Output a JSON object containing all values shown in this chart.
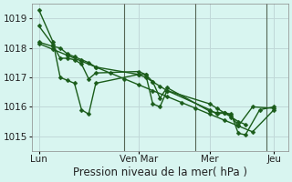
{
  "background_color": "#d8f5f0",
  "grid_color": "#c0d8d8",
  "line_color": "#1a5c1a",
  "marker": "D",
  "markersize": 2.5,
  "linewidth": 1.0,
  "xlabel": "Pression niveau de la mer( hPa )",
  "xlabel_fontsize": 8.5,
  "tick_fontsize": 7.5,
  "ylim": [
    1014.5,
    1019.5
  ],
  "yticks": [
    1015,
    1016,
    1017,
    1018,
    1019
  ],
  "xticklabels": [
    "Lun",
    "Ven Mar",
    "Mer",
    "Jeu"
  ],
  "xtick_positions": [
    0,
    14,
    24,
    33
  ],
  "series": [
    {
      "x": [
        0,
        2,
        3,
        4,
        5,
        6,
        7,
        8,
        14,
        15,
        16,
        17,
        18,
        24,
        25,
        26,
        27,
        28,
        29,
        31,
        33
      ],
      "y": [
        1019.3,
        1018.2,
        1017.0,
        1016.9,
        1016.8,
        1015.9,
        1015.75,
        1016.8,
        1017.1,
        1017.1,
        1016.1,
        1016.0,
        1016.55,
        1015.9,
        1015.75,
        1015.8,
        1015.75,
        1015.1,
        1015.05,
        1015.9,
        1016.0
      ]
    },
    {
      "x": [
        0,
        2,
        3,
        4,
        5,
        6,
        7,
        8,
        14,
        15,
        16,
        17,
        18,
        24,
        25,
        26,
        27,
        28,
        30,
        33
      ],
      "y": [
        1018.75,
        1018.1,
        1017.65,
        1017.65,
        1017.6,
        1017.45,
        1016.95,
        1017.15,
        1017.2,
        1017.1,
        1016.85,
        1016.3,
        1016.65,
        1015.85,
        1015.8,
        1015.8,
        1015.7,
        1015.35,
        1016.0,
        1015.95
      ]
    },
    {
      "x": [
        0,
        2,
        3,
        4,
        5,
        6,
        7,
        8,
        14,
        15,
        16,
        17,
        18,
        24,
        25,
        26,
        27,
        28,
        29
      ],
      "y": [
        1018.2,
        1018.05,
        1018.0,
        1017.8,
        1017.7,
        1017.6,
        1017.5,
        1017.35,
        1017.1,
        1017.0,
        1016.85,
        1016.7,
        1016.55,
        1016.1,
        1015.95,
        1015.8,
        1015.65,
        1015.5,
        1015.4
      ]
    },
    {
      "x": [
        0,
        2,
        4,
        6,
        8,
        10,
        12,
        14,
        16,
        18,
        20,
        22,
        24,
        26,
        28,
        30,
        33
      ],
      "y": [
        1018.15,
        1017.95,
        1017.75,
        1017.55,
        1017.35,
        1017.15,
        1016.95,
        1016.75,
        1016.55,
        1016.35,
        1016.15,
        1015.95,
        1015.75,
        1015.55,
        1015.35,
        1015.15,
        1015.9
      ]
    }
  ],
  "vlines": [
    12,
    22,
    32
  ]
}
